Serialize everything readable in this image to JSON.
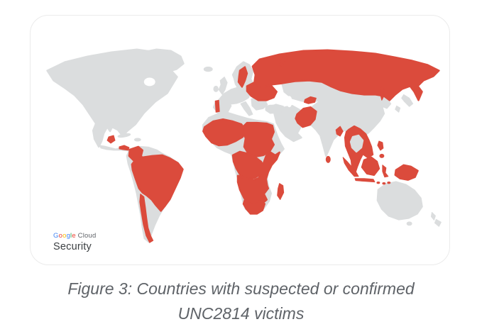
{
  "caption": {
    "line1": "Figure 3: Countries with suspected or confirmed",
    "line2": "UNC2814 victims"
  },
  "logo": {
    "google_letters": [
      {
        "ch": "G",
        "color": "#4285F4"
      },
      {
        "ch": "o",
        "color": "#EA4335"
      },
      {
        "ch": "o",
        "color": "#FBBC05"
      },
      {
        "ch": "g",
        "color": "#4285F4"
      },
      {
        "ch": "l",
        "color": "#34A853"
      },
      {
        "ch": "e",
        "color": "#EA4335"
      }
    ],
    "suffix": " Cloud",
    "product": "Security"
  },
  "map": {
    "type": "choropleth-world-map",
    "projection": "world outline, equirectangular-style",
    "highlight_meaning": "Countries with suspected or confirmed UNC2814 victims",
    "colors": {
      "highlighted": "#DB4B3C",
      "land": "#DBDDDE",
      "water": "#FFFFFF",
      "card_border": "#EBEBEB",
      "caption_text": "#5F6368"
    },
    "highlighted_regions": [
      "Guatemala",
      "Panama",
      "Colombia",
      "Peru",
      "Bolivia",
      "Brazil",
      "Chile",
      "Portugal",
      "Sweden",
      "Poland",
      "Belarus",
      "Baltic states",
      "Ukraine",
      "Russia",
      "Senegal",
      "Guinea",
      "Mali",
      "Burkina Faso",
      "Chad",
      "Egypt",
      "Sudan",
      "Cameroon",
      "Central African Republic",
      "Ethiopia",
      "Kenya",
      "Tanzania",
      "Democratic Republic of the Congo",
      "Angola",
      "Zambia",
      "Zimbabwe",
      "Mozambique",
      "South Africa",
      "Madagascar",
      "Afghanistan",
      "Kyrgyzstan",
      "Bangladesh",
      "Sri Lanka",
      "Myanmar",
      "Laos",
      "Vietnam",
      "Cambodia",
      "Malaysia",
      "Indonesia",
      "Philippines",
      "Papua New Guinea"
    ],
    "not_highlighted_major_examples": [
      "United States",
      "Canada",
      "Mexico",
      "Argentina",
      "Venezuela",
      "Spain",
      "France",
      "Germany",
      "United Kingdom",
      "Italy",
      "Turkey",
      "Saudi Arabia",
      "Iran",
      "Kazakhstan",
      "India",
      "China",
      "Mongolia",
      "Thailand",
      "Japan",
      "Australia",
      "New Zealand"
    ]
  }
}
